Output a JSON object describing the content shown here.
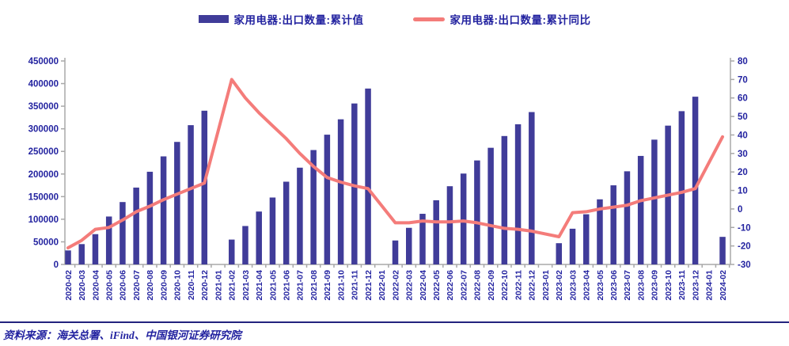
{
  "legend": [
    {
      "label": "家用电器:出口数量:累计值",
      "type": "bar",
      "color": "#403C99"
    },
    {
      "label": "家用电器:出口数量:累计同比",
      "type": "line",
      "color": "#F47C7A"
    }
  ],
  "source_note": "资料来源：海关总署、iFind、中国银河证券研究院",
  "colors": {
    "bar": "#403C99",
    "line": "#F47C7A",
    "axis": "#A8A8A8",
    "text": "#2323A0",
    "divider": "#23237E"
  },
  "chart_data": {
    "type": "bar+line dual-axis",
    "title": "",
    "grid": false,
    "legend_position": "top",
    "categories": [
      "2020-02",
      "2020-03",
      "2020-04",
      "2020-05",
      "2020-06",
      "2020-07",
      "2020-08",
      "2020-09",
      "2020-10",
      "2020-11",
      "2020-12",
      "2021-01",
      "2021-02",
      "2021-03",
      "2021-04",
      "2021-05",
      "2021-06",
      "2021-07",
      "2021-08",
      "2021-09",
      "2021-10",
      "2021-11",
      "2021-12",
      "2022-01",
      "2022-02",
      "2022-03",
      "2022-04",
      "2022-05",
      "2022-06",
      "2022-07",
      "2022-08",
      "2022-09",
      "2022-10",
      "2022-11",
      "2022-12",
      "2023-01",
      "2023-02",
      "2023-03",
      "2023-04",
      "2023-05",
      "2023-06",
      "2023-07",
      "2023-08",
      "2023-09",
      "2023-10",
      "2023-11",
      "2023-12",
      "2024-01",
      "2024-02"
    ],
    "series": [
      {
        "name": "家用电器:出口数量:累计值",
        "type": "bar",
        "axis": "left",
        "color": "#403C99",
        "values": [
          31000,
          45000,
          67000,
          106000,
          138000,
          170000,
          205000,
          239000,
          271000,
          308000,
          340000,
          null,
          55000,
          85000,
          117000,
          148000,
          183000,
          214000,
          253000,
          287000,
          321000,
          356000,
          389000,
          null,
          53000,
          81000,
          112000,
          142000,
          173000,
          201000,
          230000,
          258000,
          284000,
          310000,
          337000,
          null,
          47000,
          79000,
          111000,
          144000,
          175000,
          206000,
          240000,
          276000,
          307000,
          339000,
          371000,
          null,
          61000
        ]
      },
      {
        "name": "家用电器:出口数量:累计同比",
        "type": "line",
        "axis": "right",
        "color": "#F47C7A",
        "values": [
          -21,
          -17,
          -11,
          -10,
          -6,
          -1.5,
          1.5,
          5,
          8,
          11,
          14,
          null,
          70,
          60,
          52,
          45,
          38,
          30,
          23,
          17,
          14.5,
          12.5,
          11,
          null,
          -7.5,
          -7.5,
          -6.5,
          -7,
          -7,
          -6.5,
          -7.5,
          -9,
          -10.5,
          -11,
          -12,
          null,
          -15,
          -2,
          -1.5,
          0,
          1,
          2,
          4.5,
          6,
          7.5,
          9,
          11,
          null,
          39
        ]
      }
    ],
    "left_axis": {
      "min": 0,
      "max": 450000,
      "step": 50000,
      "ticks": [
        "0",
        "50000",
        "100000",
        "150000",
        "200000",
        "250000",
        "300000",
        "350000",
        "400000",
        "450000"
      ]
    },
    "right_axis": {
      "min": -30,
      "max": 80,
      "step": 10,
      "ticks": [
        "-30",
        "-20",
        "-10",
        "0",
        "10",
        "20",
        "30",
        "40",
        "50",
        "60",
        "70",
        "80"
      ]
    }
  }
}
